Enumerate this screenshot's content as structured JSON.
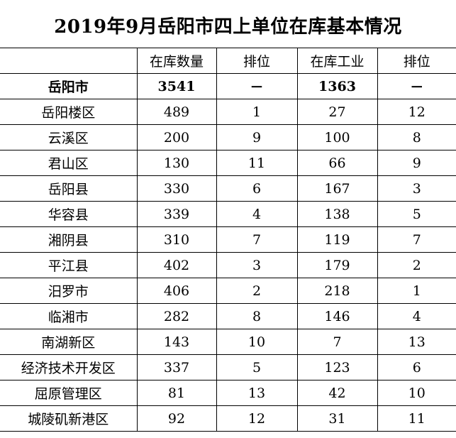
{
  "title": "2019年9月岳阳市四上单位在库基本情况",
  "table": {
    "headers": [
      "",
      "在库数量",
      "排位",
      "在库工业",
      "排位"
    ],
    "total": [
      "岳阳市",
      "3541",
      "－",
      "1363",
      "－"
    ],
    "rows": [
      [
        "岳阳楼区",
        "489",
        "1",
        "27",
        "12"
      ],
      [
        "云溪区",
        "200",
        "9",
        "100",
        "8"
      ],
      [
        "君山区",
        "130",
        "11",
        "66",
        "9"
      ],
      [
        "岳阳县",
        "330",
        "6",
        "167",
        "3"
      ],
      [
        "华容县",
        "339",
        "4",
        "138",
        "5"
      ],
      [
        "湘阴县",
        "310",
        "7",
        "119",
        "7"
      ],
      [
        "平江县",
        "402",
        "3",
        "179",
        "2"
      ],
      [
        "汨罗市",
        "406",
        "2",
        "218",
        "1"
      ],
      [
        "临湘市",
        "282",
        "8",
        "146",
        "4"
      ],
      [
        "南湖新区",
        "143",
        "10",
        "7",
        "13"
      ],
      [
        "经济技术开发区",
        "337",
        "5",
        "123",
        "6"
      ],
      [
        "屈原管理区",
        "81",
        "13",
        "42",
        "10"
      ],
      [
        "城陵矶新港区",
        "92",
        "12",
        "31",
        "11"
      ]
    ]
  }
}
